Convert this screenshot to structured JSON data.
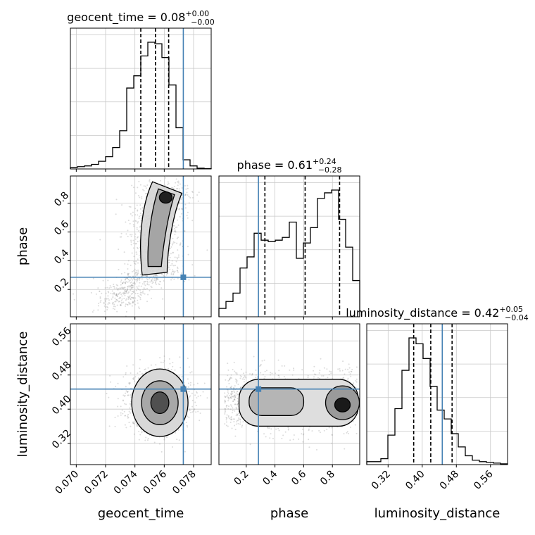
{
  "chart_data": {
    "type": "corner",
    "parameters": [
      "geocent_time",
      "phase",
      "luminosity_distance"
    ],
    "titles": [
      {
        "param": "geocent_time",
        "text": "geocent_time = 0.08",
        "plus": "+0.00",
        "minus": "−0.00"
      },
      {
        "param": "phase",
        "text": "phase = 0.61",
        "plus": "+0.24",
        "minus": "−0.28"
      },
      {
        "param": "luminosity_distance",
        "text": "luminosity_distance = 0.42",
        "plus": "+0.05",
        "minus": "−0.04"
      }
    ],
    "ranges": {
      "geocent_time": [
        0.0696,
        0.0792
      ],
      "phase": [
        0.01,
        0.99
      ],
      "luminosity_distance": [
        0.27,
        0.6
      ]
    },
    "ticks": {
      "geocent_time": [
        "0.070",
        "0.072",
        "0.074",
        "0.076",
        "0.078"
      ],
      "phase": [
        "0.2",
        "0.4",
        "0.6",
        "0.8"
      ],
      "luminosity_distance": [
        "0.32",
        "0.40",
        "0.48",
        "0.56"
      ]
    },
    "truths": {
      "geocent_time": 0.0773,
      "phase": 0.285,
      "luminosity_distance": 0.447
    },
    "quantiles": {
      "geocent_time": [
        0.0744,
        0.0754,
        0.0763
      ],
      "phase": [
        0.33,
        0.61,
        0.85
      ],
      "luminosity_distance": [
        0.38,
        0.42,
        0.47
      ]
    },
    "histograms": {
      "geocent_time": {
        "edges_start": 0.0696,
        "bin_width": 0.00048,
        "counts": [
          0.01,
          0.015,
          0.02,
          0.03,
          0.05,
          0.08,
          0.14,
          0.25,
          0.53,
          0.61,
          0.74,
          0.83,
          0.82,
          0.73,
          0.55,
          0.27,
          0.06,
          0.02,
          0.005,
          0.002
        ]
      },
      "phase": {
        "edges_start": 0.01,
        "bin_width": 0.049,
        "counts": [
          0.06,
          0.11,
          0.17,
          0.35,
          0.43,
          0.6,
          0.55,
          0.54,
          0.55,
          0.57,
          0.68,
          0.42,
          0.53,
          0.64,
          0.85,
          0.89,
          0.91,
          0.7,
          0.5,
          0.26
        ]
      },
      "luminosity_distance": {
        "edges_start": 0.27,
        "bin_width": 0.0165,
        "counts": [
          0.02,
          0.02,
          0.04,
          0.2,
          0.38,
          0.64,
          0.86,
          0.82,
          0.72,
          0.53,
          0.37,
          0.31,
          0.21,
          0.12,
          0.06,
          0.03,
          0.02,
          0.015,
          0.01,
          0.005
        ]
      }
    },
    "colors": {
      "truth": "#4682b4",
      "hist": "#000000",
      "grid": "#c8c8c8",
      "scatter": "#9a9a9a"
    }
  }
}
